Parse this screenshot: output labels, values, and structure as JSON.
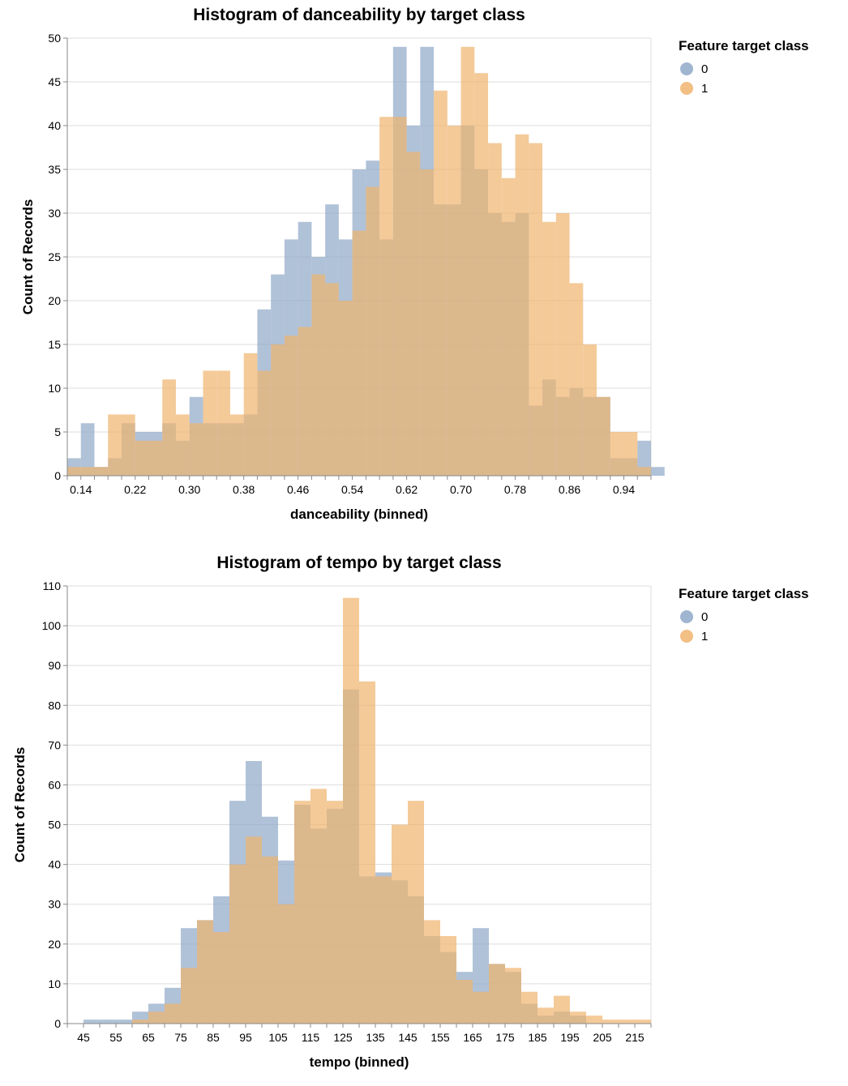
{
  "colors": {
    "class0": "#8fa8c8",
    "class1": "#f0b46e",
    "grid": "#dddddd",
    "axis": "#888888"
  },
  "chart_data": [
    {
      "type": "bar",
      "title": "Histogram of danceability by target class",
      "xlabel": "danceability (binned)",
      "ylabel": "Count of Records",
      "xlim": [
        0.12,
        0.98
      ],
      "ylim": [
        0,
        50
      ],
      "bin_width": 0.02,
      "x_ticks": [
        "0.14",
        "0.22",
        "0.30",
        "0.38",
        "0.46",
        "0.54",
        "0.62",
        "0.70",
        "0.78",
        "0.86",
        "0.94"
      ],
      "y_ticks": [
        "0",
        "5",
        "10",
        "15",
        "20",
        "25",
        "30",
        "35",
        "40",
        "45",
        "50"
      ],
      "legend": {
        "title": "Feature target class",
        "entries": [
          "0",
          "1"
        ],
        "position": "right"
      },
      "series": [
        {
          "name": "0",
          "bin_start": 0.12,
          "values": [
            2,
            6,
            1,
            2,
            6,
            5,
            5,
            6,
            4,
            9,
            6,
            6,
            6,
            7,
            19,
            23,
            27,
            29,
            25,
            31,
            27,
            35,
            36,
            27,
            49,
            40,
            49,
            31,
            31,
            40,
            35,
            30,
            29,
            30,
            8,
            11,
            9,
            10,
            9,
            9,
            2,
            2,
            4,
            1
          ]
        },
        {
          "name": "1",
          "bin_start": 0.12,
          "values": [
            1,
            1,
            1,
            7,
            7,
            4,
            4,
            11,
            7,
            6,
            12,
            12,
            7,
            14,
            12,
            15,
            16,
            17,
            23,
            22,
            20,
            28,
            33,
            41,
            41,
            37,
            35,
            44,
            40,
            49,
            46,
            38,
            34,
            39,
            38,
            29,
            30,
            22,
            15,
            9,
            5,
            5,
            1,
            0
          ]
        }
      ]
    },
    {
      "type": "bar",
      "title": "Histogram of tempo by target class",
      "xlabel": "tempo (binned)",
      "ylabel": "Count of Records",
      "xlim": [
        40,
        220
      ],
      "ylim": [
        0,
        110
      ],
      "bin_width": 5,
      "x_ticks": [
        "45",
        "55",
        "65",
        "75",
        "85",
        "95",
        "105",
        "115",
        "125",
        "135",
        "145",
        "155",
        "165",
        "175",
        "185",
        "195",
        "205",
        "215"
      ],
      "y_ticks": [
        "0",
        "10",
        "20",
        "30",
        "40",
        "50",
        "60",
        "70",
        "80",
        "90",
        "100",
        "110"
      ],
      "legend": {
        "title": "Feature target class",
        "entries": [
          "0",
          "1"
        ],
        "position": "right"
      },
      "series": [
        {
          "name": "0",
          "bin_start": 45,
          "values": [
            1,
            1,
            1,
            3,
            5,
            9,
            24,
            26,
            32,
            56,
            66,
            52,
            41,
            55,
            49,
            54,
            84,
            37,
            38,
            36,
            32,
            22,
            18,
            13,
            24,
            15,
            13,
            5,
            2,
            3,
            2,
            0,
            0,
            0
          ]
        },
        {
          "name": "1",
          "bin_start": 45,
          "values": [
            0,
            0,
            0,
            1,
            3,
            5,
            14,
            26,
            23,
            40,
            47,
            42,
            30,
            56,
            59,
            56,
            107,
            86,
            37,
            50,
            56,
            26,
            22,
            11,
            8,
            15,
            14,
            8,
            4,
            7,
            3,
            2,
            1,
            1,
            1
          ]
        }
      ]
    }
  ]
}
